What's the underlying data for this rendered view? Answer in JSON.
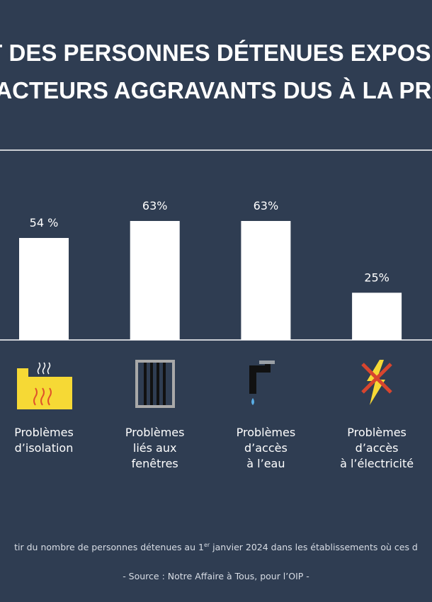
{
  "title_lines": [
    "ART DES PERSONNES DÉTENUES EXPOSÉES",
    "X FACTEURS AGGRAVANTS DUS À LA PRISO"
  ],
  "chart_data": {
    "type": "bar",
    "categories": [
      "Problèmes\nd’isolation",
      "Problèmes\nliés aux\nfenêtres",
      "Problèmes\nd’accès\nà l’eau",
      "Problèmes\nd’accès\nà l’électricité"
    ],
    "values": [
      54,
      63,
      63,
      25
    ],
    "value_labels": [
      "54 %",
      "63%",
      "63%",
      "25%"
    ],
    "color": "#ffffff"
  },
  "footnote": {
    "before": "tir du nombre de personnes détenues au 1",
    "sup": "er",
    "after": " janvier 2024 dans les établissements où ces d"
  },
  "source": "- Source : Notre Affaire à Tous, pour l’OIP -"
}
